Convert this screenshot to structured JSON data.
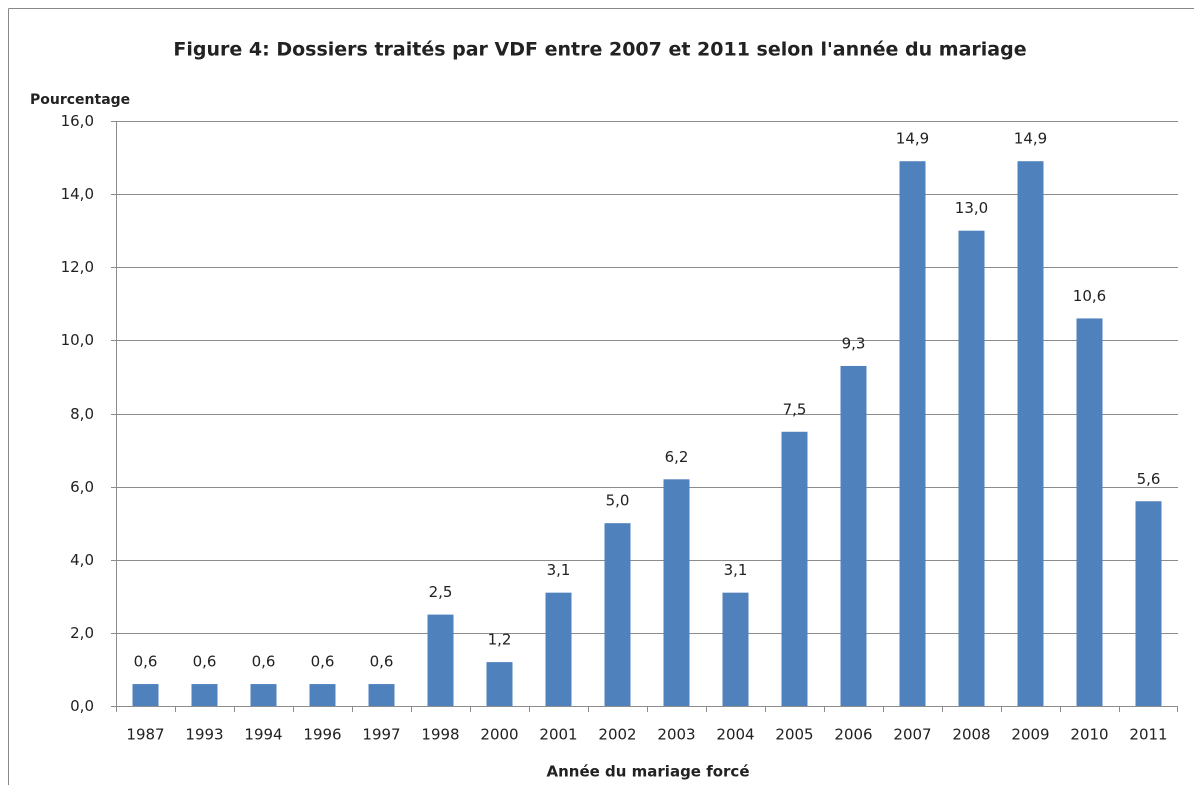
{
  "chart_data": {
    "type": "bar",
    "title": "Figure 4:  Dossiers traités par VDF entre 2007 et 2011 selon l'année du mariage",
    "y_label": "Pourcentage",
    "x_label": "Année du mariage forcé",
    "categories": [
      "1987",
      "1993",
      "1994",
      "1996",
      "1997",
      "1998",
      "2000",
      "2001",
      "2002",
      "2003",
      "2004",
      "2005",
      "2006",
      "2007",
      "2008",
      "2009",
      "2010",
      "2011"
    ],
    "values": [
      0.6,
      0.6,
      0.6,
      0.6,
      0.6,
      2.5,
      1.2,
      3.1,
      5.0,
      6.2,
      3.1,
      7.5,
      9.3,
      14.9,
      13.0,
      14.9,
      10.6,
      5.6
    ],
    "value_labels": [
      "0,6",
      "0,6",
      "0,6",
      "0,6",
      "0,6",
      "2,5",
      "1,2",
      "3,1",
      "5,0",
      "6,2",
      "3,1",
      "7,5",
      "9,3",
      "14,9",
      "13,0",
      "14,9",
      "10,6",
      "5,6"
    ],
    "color": "#4f81bd",
    "ylim": [
      0,
      16
    ],
    "yticks": [
      {
        "value": 0,
        "label": "0,0"
      },
      {
        "value": 2,
        "label": "2,0"
      },
      {
        "value": 4,
        "label": "4,0"
      },
      {
        "value": 6,
        "label": "6,0"
      },
      {
        "value": 8,
        "label": "8,0"
      },
      {
        "value": 10,
        "label": "10,0"
      },
      {
        "value": 12,
        "label": "12,0"
      },
      {
        "value": 14,
        "label": "14,0"
      },
      {
        "value": 16,
        "label": "16,0"
      }
    ],
    "grid": true
  }
}
